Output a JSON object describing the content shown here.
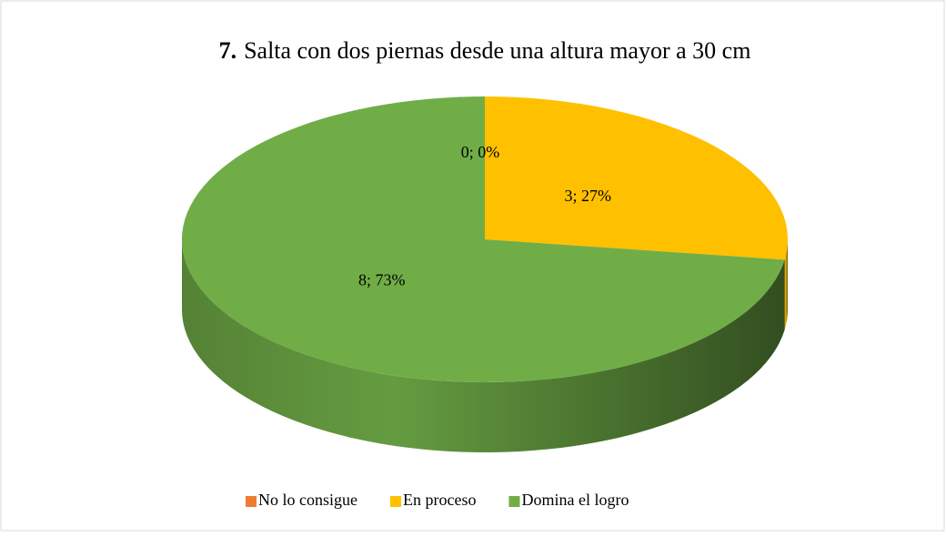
{
  "chart_data": {
    "type": "pie",
    "title_number": "7.",
    "title": "Salta con dos piernas desde una altura mayor a 30 cm",
    "categories": [
      "No lo consigue",
      "En proceso",
      "Domina el logro"
    ],
    "values": [
      0,
      3,
      8
    ],
    "value_labels": [
      "0; 0%",
      "3; 27%",
      "8; 73%"
    ],
    "colors": [
      "#ED7D31",
      "#FFC000",
      "#70AD47"
    ],
    "legend": "bottom"
  }
}
